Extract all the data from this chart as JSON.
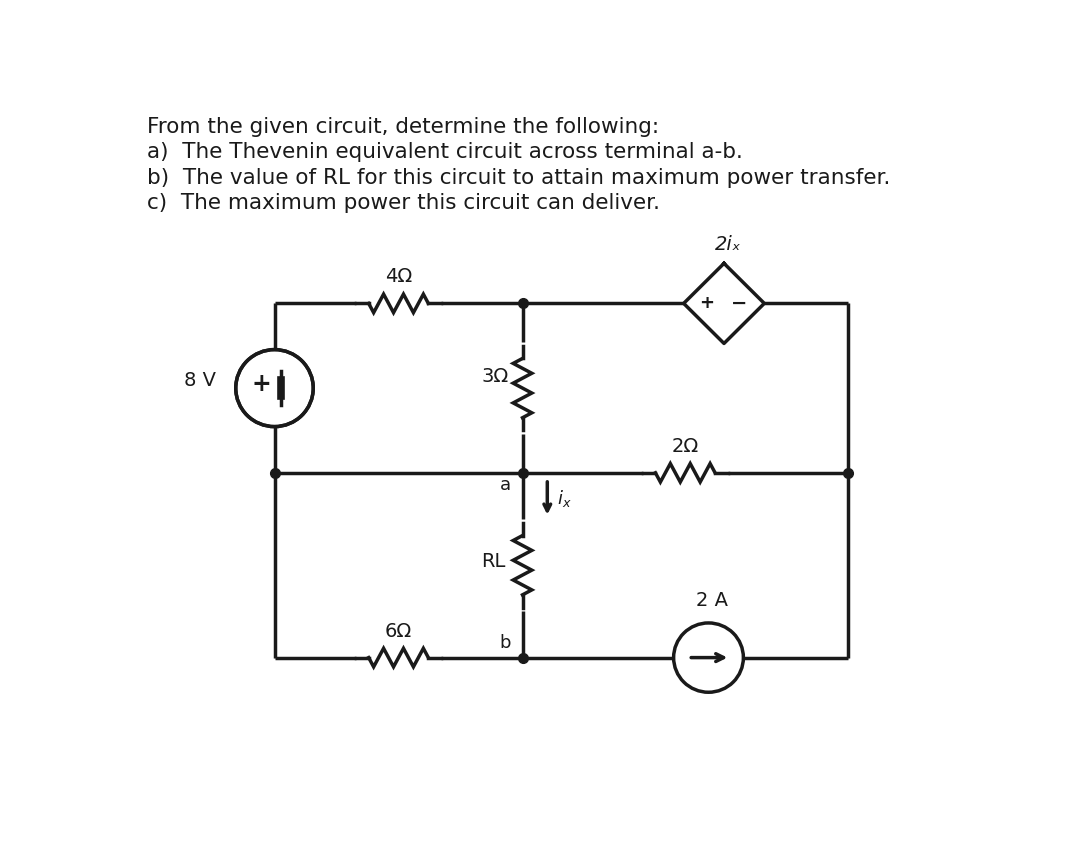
{
  "title_lines": [
    "From the given circuit, determine the following:",
    "a)  The Thevenin equivalent circuit across terminal a-b.",
    "b)  The value of RL for this circuit to attain maximum power transfer.",
    "c)  The maximum power this circuit can deliver."
  ],
  "bg_color": "#ffffff",
  "text_color": "#1a1a1a",
  "line_color": "#1a1a1a",
  "title_fontsize": 15.5,
  "nodes": {
    "TLx": 1.8,
    "TLy": 6.0,
    "TMx": 5.0,
    "TMy": 6.0,
    "TRx": 9.2,
    "TRy": 6.0,
    "MLx": 1.8,
    "MLy": 3.8,
    "MMx": 5.0,
    "MMy": 3.8,
    "MRx": 9.2,
    "MRy": 3.8,
    "BLx": 1.8,
    "BLy": 1.4,
    "BMx": 5.0,
    "BMy": 1.4,
    "BRx": 9.2,
    "BRy": 1.4
  },
  "components": {
    "R1": "4Ω",
    "R2": "3Ω",
    "R3": "2Ω",
    "R4": "RL",
    "R5": "6Ω",
    "V1": "8 V",
    "I1": "2 A",
    "dep_source": "2iₓ"
  }
}
